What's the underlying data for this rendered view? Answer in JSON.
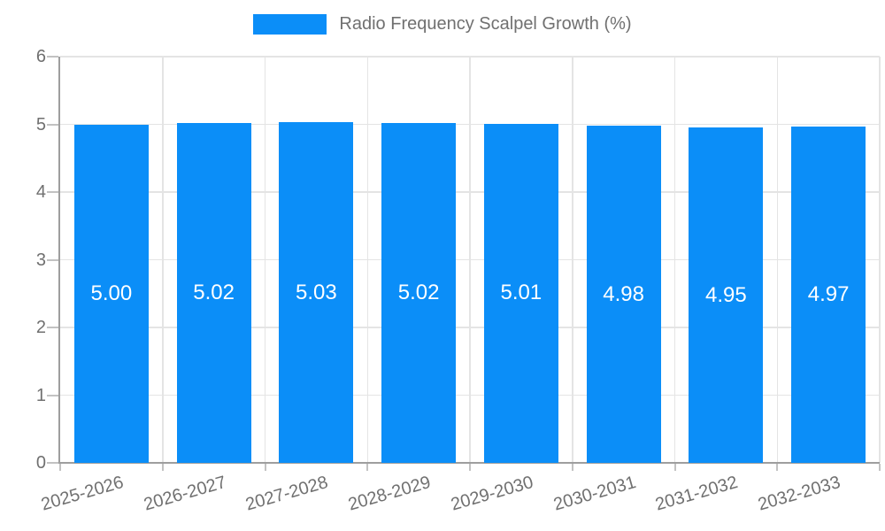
{
  "legend": {
    "label": "Radio Frequency Scalpel Growth (%)"
  },
  "chart_data": {
    "type": "bar",
    "title": "Radio Frequency Scalpel Growth (%)",
    "categories": [
      "2025-2026",
      "2026-2027",
      "2027-2028",
      "2028-2029",
      "2029-2030",
      "2030-2031",
      "2031-2032",
      "2032-2033"
    ],
    "series": [
      {
        "name": "Radio Frequency Scalpel Growth (%)",
        "values": [
          5.0,
          5.02,
          5.03,
          5.02,
          5.01,
          4.98,
          4.95,
          4.97
        ],
        "value_labels": [
          "5.00",
          "5.02",
          "5.03",
          "5.02",
          "5.01",
          "4.98",
          "4.95",
          "4.97"
        ]
      }
    ],
    "xlabel": "",
    "ylabel": "",
    "ylim": [
      0,
      6
    ],
    "yticks": [
      0,
      1,
      2,
      3,
      4,
      5,
      6
    ],
    "grid": true,
    "legend_position": "top",
    "colors": {
      "bar": "#0b8ef8",
      "value_label": "#ffffff",
      "axis_text": "#707070",
      "gridline": "#e4e4e4",
      "axis_line": "#9e9e9e",
      "tick": "#c2c2c2",
      "background": "#ffffff"
    }
  }
}
